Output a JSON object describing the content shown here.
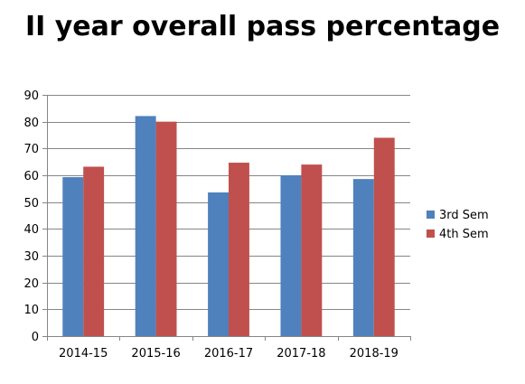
{
  "chart_data": {
    "type": "bar",
    "title": "II year overall pass percentage",
    "xlabel": "",
    "ylabel": "",
    "categories": [
      "2014-15",
      "2015-16",
      "2016-17",
      "2017-18",
      "2018-19"
    ],
    "series": [
      {
        "name": "3rd Sem",
        "color": "#4f81bd",
        "values": [
          59.3,
          82.1,
          53.6,
          60.0,
          58.6
        ]
      },
      {
        "name": "4th Sem",
        "color": "#c0504d",
        "values": [
          63.2,
          80.0,
          64.7,
          64.0,
          74.0
        ]
      }
    ],
    "ylim": [
      0,
      90
    ],
    "yticks": [
      0,
      10,
      20,
      30,
      40,
      50,
      60,
      70,
      80,
      90
    ],
    "grid": true,
    "legend_position": "right"
  }
}
